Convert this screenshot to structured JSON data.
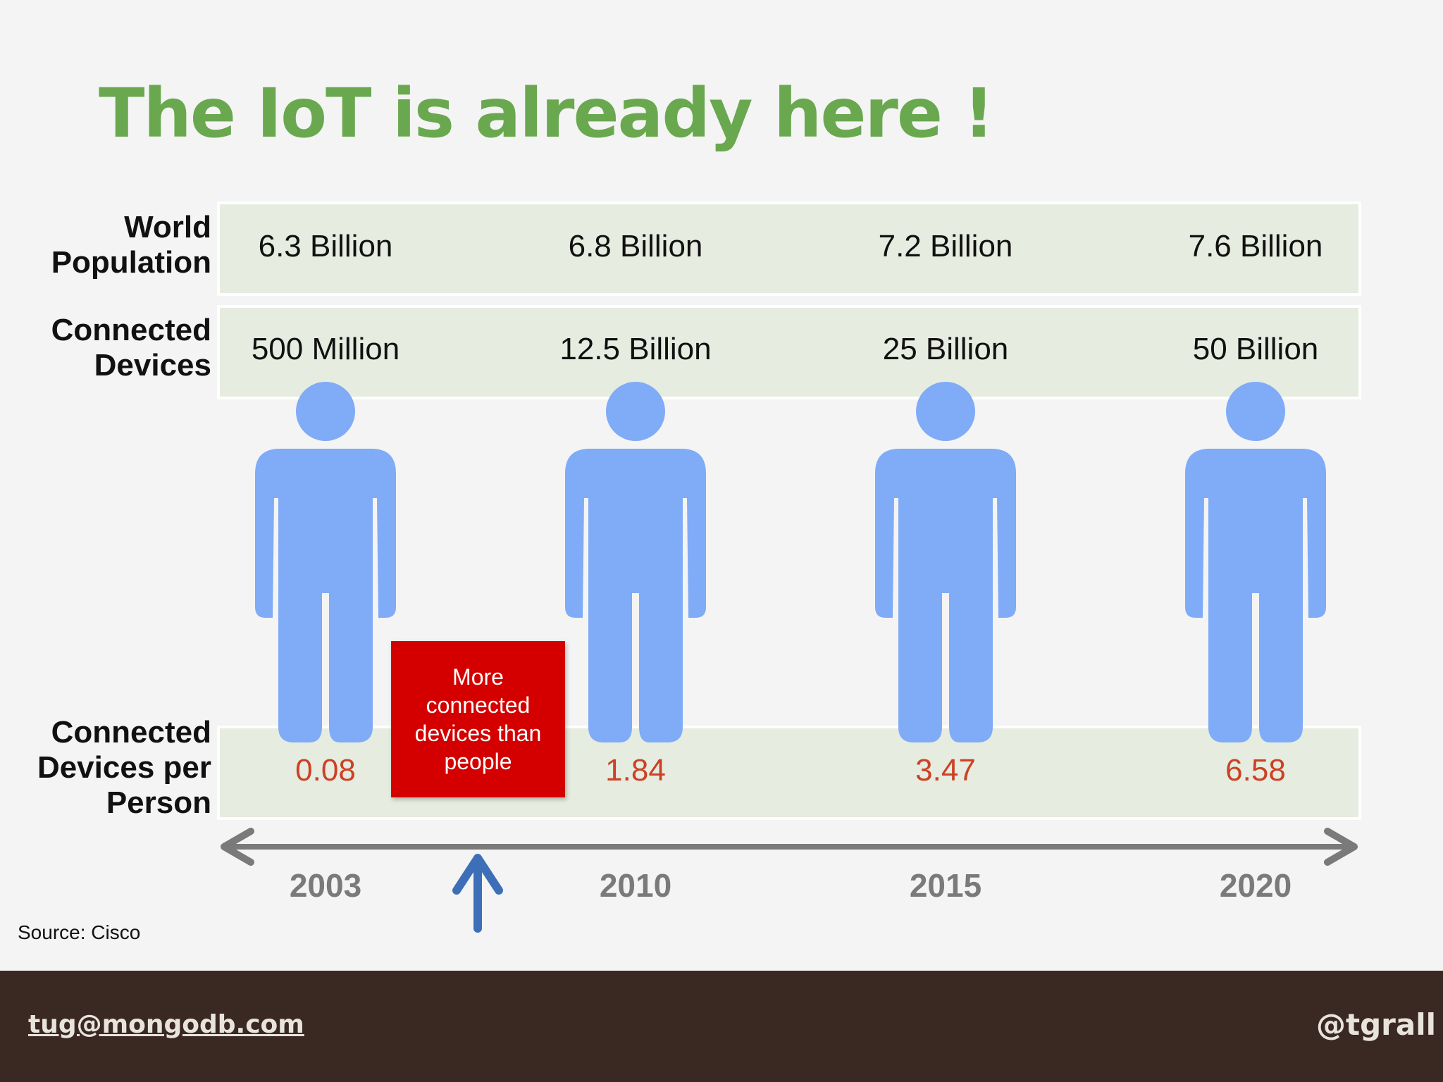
{
  "title": "The IoT is already here !",
  "row_labels": {
    "world_population": [
      "World",
      "Population"
    ],
    "connected_devices": [
      "Connected",
      "Devices"
    ],
    "devices_per_person": [
      "Connected",
      "Devices per",
      "Person"
    ]
  },
  "chart_data": {
    "type": "table",
    "years": [
      "2003",
      "2010",
      "2015",
      "2020"
    ],
    "world_population": [
      "6.3 Billion",
      "6.8 Billion",
      "7.2 Billion",
      "7.6 Billion"
    ],
    "connected_devices": [
      "500 Million",
      "12.5 Billion",
      "25 Billion",
      "50 Billion"
    ],
    "devices_per_person": [
      "0.08",
      "1.84",
      "3.47",
      "6.58"
    ]
  },
  "callout": "More connected devices than people",
  "source": "Source: Cisco",
  "footer": {
    "email": "tug@mongodb.com",
    "handle": "@tgrall"
  },
  "colors": {
    "title": "#6aa84f",
    "band": "#e6ecdf",
    "person_icon": "#7fabf7",
    "ratio_text": "#cc4125",
    "callout_bg": "#d40000",
    "timeline": "#7a7a7a",
    "up_arrow": "#3d6fb8",
    "footer_bg": "#3a2823"
  }
}
